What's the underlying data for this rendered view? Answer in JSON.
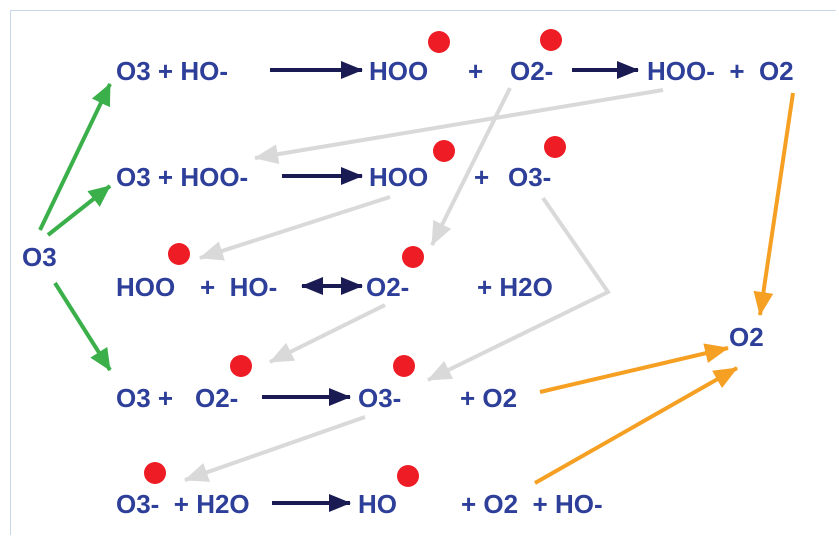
{
  "colors": {
    "text": "#2e3f9a",
    "radical_dot": "#ee1c24",
    "reaction_arrow": "#1b1b54",
    "ozone_arrow": "#3bb04a",
    "oxygen_arrow": "#f5a023",
    "pathway_arrow": "#d9d9d9"
  },
  "labels": {
    "o3_source": "O3",
    "row1": {
      "left": "O3 + HO-",
      "hoo": "HOO",
      "plus": "+",
      "o2m": "O2-",
      "right": "HOO-  +  O2"
    },
    "row2": {
      "left": "O3 + HOO-",
      "hoo": "HOO",
      "plus": "+",
      "o3m": "O3-"
    },
    "row3": {
      "hoo": "HOO",
      "plus_ho": "+  HO-",
      "o2m": "O2-",
      "h2o": "+ H2O"
    },
    "row4": {
      "left": "O3 +",
      "o2m": "O2-",
      "o3m": "O3-",
      "o2": "+ O2"
    },
    "row5": {
      "o3m_h2o": "O3-  + H2O",
      "ho": "HO",
      "products": "+ O2  + HO-"
    },
    "o2_sink": "O2"
  }
}
